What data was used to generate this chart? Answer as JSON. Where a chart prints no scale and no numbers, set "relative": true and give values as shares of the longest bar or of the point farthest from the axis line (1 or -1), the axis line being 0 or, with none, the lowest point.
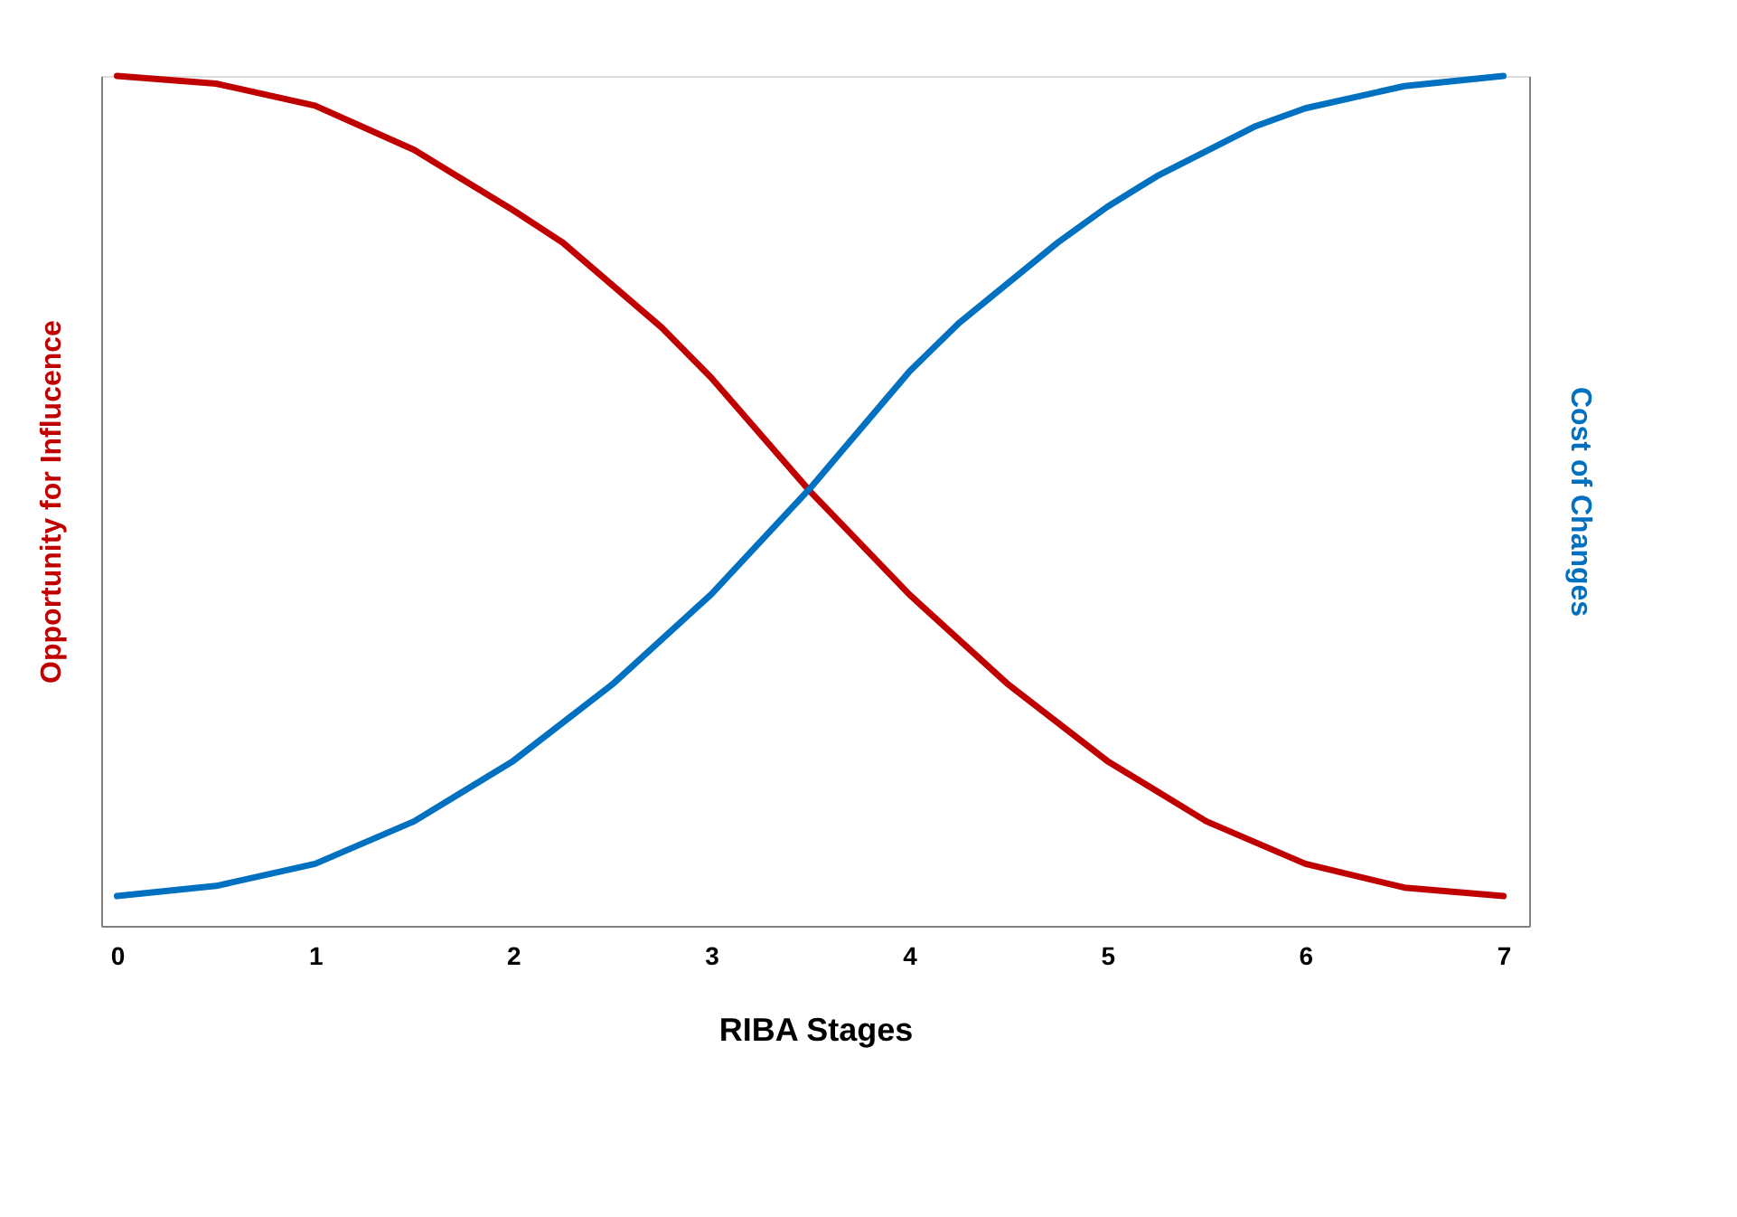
{
  "chart_data": {
    "type": "line",
    "relative": true,
    "xlabel": "RIBA Stages",
    "ylabel": "Opportunity for Influcence",
    "y2label": "Cost of Changes",
    "xlim": [
      -0.08,
      7.13
    ],
    "xticks": [
      0,
      1,
      2,
      3,
      4,
      5,
      6,
      7
    ],
    "grid": false,
    "line_style": "solid",
    "series": [
      {
        "color": "#c00000",
        "x": [
          0,
          0.5,
          1,
          1.5,
          2,
          2.25,
          2.75,
          3,
          3.5,
          4,
          4.5,
          5,
          5.5,
          6,
          6.5,
          7
        ],
        "values": [
          1,
          0.991,
          0.965,
          0.913,
          0.842,
          0.804,
          0.704,
          0.645,
          0.511,
          0.39,
          0.284,
          0.194,
          0.123,
          0.073,
          0.045,
          0.035
        ]
      },
      {
        "color": "#0070c0",
        "axis": "y2",
        "x": [
          0,
          0.5,
          1,
          1.5,
          2,
          2.5,
          3,
          3.5,
          4,
          4.25,
          4.75,
          5,
          5.25,
          5.75,
          6,
          6.5,
          7
        ],
        "values": [
          0.035,
          0.047,
          0.073,
          0.123,
          0.194,
          0.284,
          0.39,
          0.515,
          0.652,
          0.709,
          0.804,
          0.846,
          0.882,
          0.941,
          0.962,
          0.988,
          1
        ]
      }
    ]
  }
}
